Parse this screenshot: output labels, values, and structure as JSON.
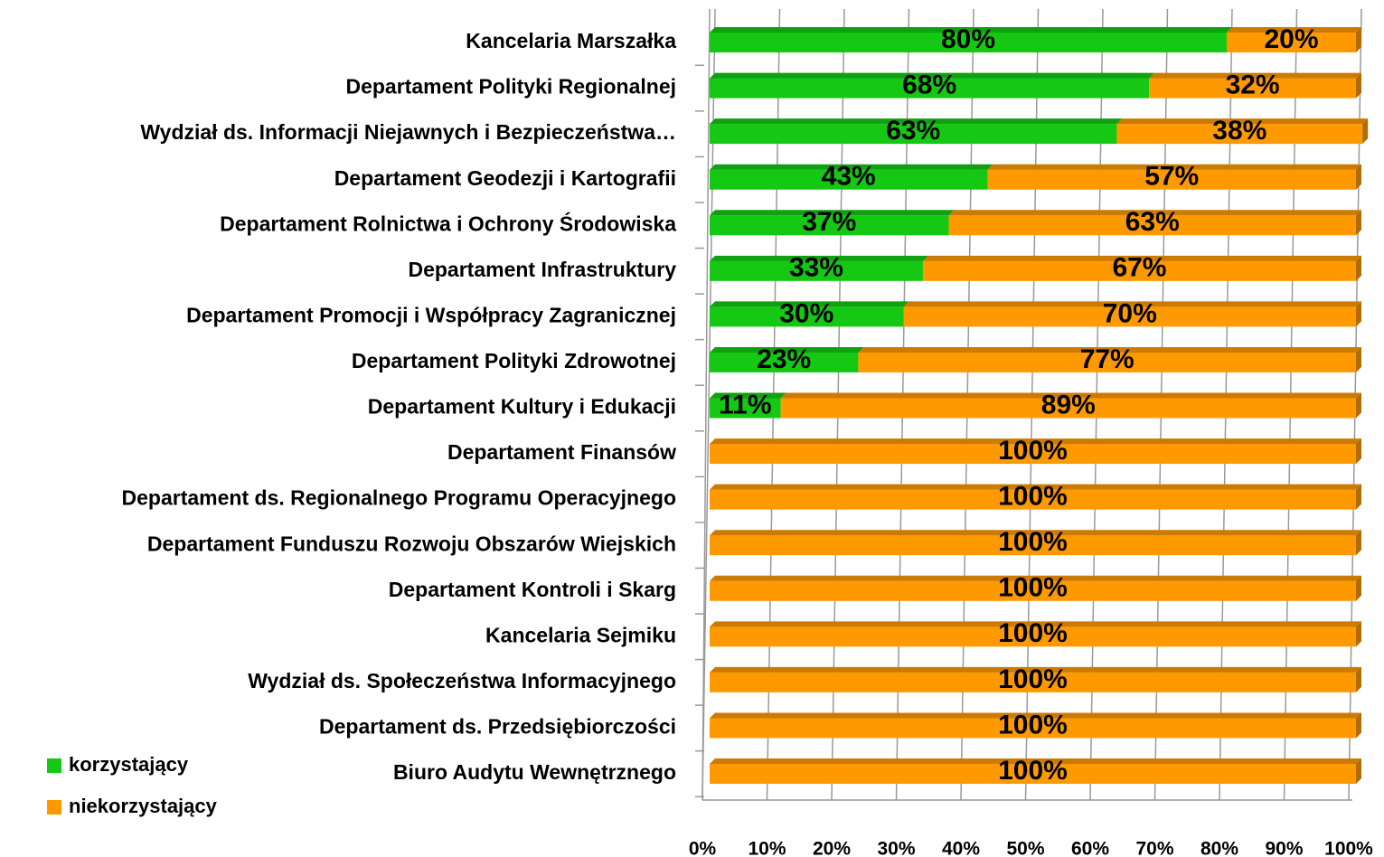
{
  "chart_data": {
    "type": "stacked_barh",
    "categories": [
      "Kancelaria Marszałka",
      "Departament Polityki Regionalnej",
      "Wydział ds. Informacji Niejawnych i Bezpieczeństwa…",
      "Departament Geodezji i Kartografii",
      "Departament Rolnictwa i Ochrony Środowiska",
      "Departament Infrastruktury",
      "Departament Promocji i Współpracy Zagranicznej",
      "Departament Polityki Zdrowotnej",
      "Departament Kultury i Edukacji",
      "Departament Finansów",
      "Departament ds. Regionalnego Programu Operacyjnego",
      "Departament Funduszu Rozwoju Obszarów Wiejskich",
      "Departament Kontroli i Skarg",
      "Kancelaria Sejmiku",
      "Wydział ds. Społeczeństwa Informacyjnego",
      "Departament ds. Przedsiębiorczości",
      "Biuro Audytu Wewnętrznego"
    ],
    "series": [
      {
        "name": "korzystający",
        "color": "#14c814",
        "values": [
          80,
          68,
          63,
          43,
          37,
          33,
          30,
          23,
          11,
          0,
          0,
          0,
          0,
          0,
          0,
          0,
          0
        ],
        "value_labels": [
          "80%",
          "68%",
          "63%",
          "43%",
          "37%",
          "33%",
          "30%",
          "23%",
          "11%",
          null,
          null,
          null,
          null,
          null,
          null,
          null,
          null
        ]
      },
      {
        "name": "niekorzystający",
        "color": "#ff9900",
        "values": [
          20,
          32,
          38,
          57,
          63,
          67,
          70,
          77,
          89,
          100,
          100,
          100,
          100,
          100,
          100,
          100,
          100
        ],
        "value_labels": [
          "20%",
          "32%",
          "38%",
          "57%",
          "63%",
          "67%",
          "70%",
          "77%",
          "89%",
          "100%",
          "100%",
          "100%",
          "100%",
          "100%",
          "100%",
          "100%",
          "100%"
        ]
      }
    ],
    "xlim": [
      0,
      100
    ],
    "xticks": [
      {
        "value": 0,
        "label": "0%"
      },
      {
        "value": 10,
        "label": "10%"
      },
      {
        "value": 20,
        "label": "20%"
      },
      {
        "value": 30,
        "label": "30%"
      },
      {
        "value": 40,
        "label": "40%"
      },
      {
        "value": 50,
        "label": "50%"
      },
      {
        "value": 60,
        "label": "60%"
      },
      {
        "value": 70,
        "label": "70%"
      },
      {
        "value": 80,
        "label": "80%"
      },
      {
        "value": 90,
        "label": "90%"
      },
      {
        "value": 100,
        "label": "100%"
      }
    ],
    "grid": true,
    "legend": "bottom-left"
  }
}
